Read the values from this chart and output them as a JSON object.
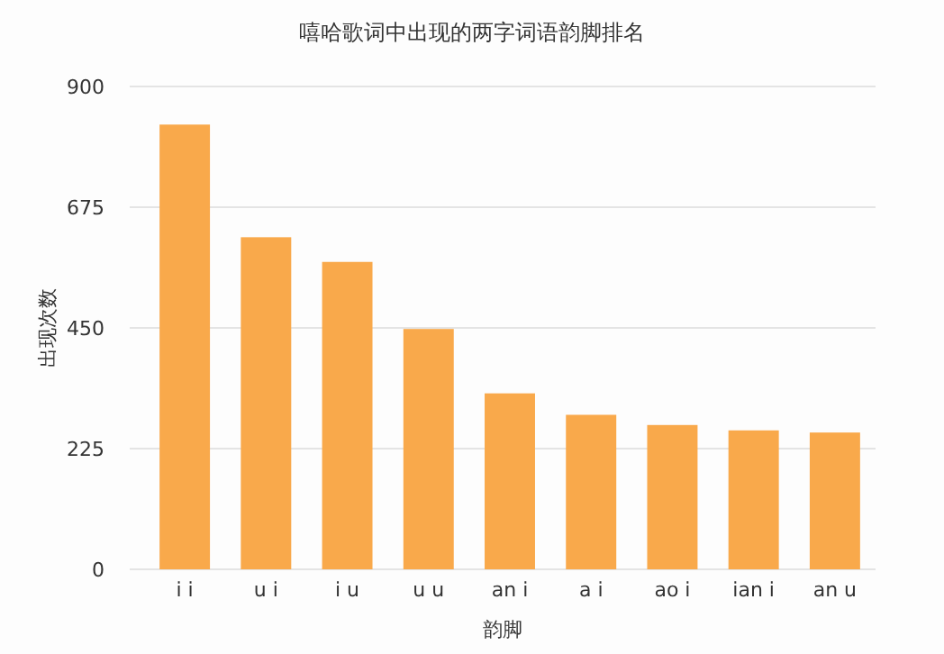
{
  "chart_data": {
    "type": "bar",
    "title": "嘻哈歌词中出现的两字词语韵脚排名",
    "xlabel": "韵脚",
    "ylabel": "出现次数",
    "categories": [
      "i i",
      "u i",
      "i u",
      "u u",
      "an i",
      "a i",
      "ao i",
      "ian i",
      "an u"
    ],
    "values": [
      829,
      619,
      573,
      448,
      328,
      288,
      269,
      259,
      255
    ],
    "color": "#f9a94b",
    "ylim": [
      0,
      900
    ],
    "yticks": [
      0,
      225,
      450,
      675,
      900
    ],
    "grid": "y"
  }
}
